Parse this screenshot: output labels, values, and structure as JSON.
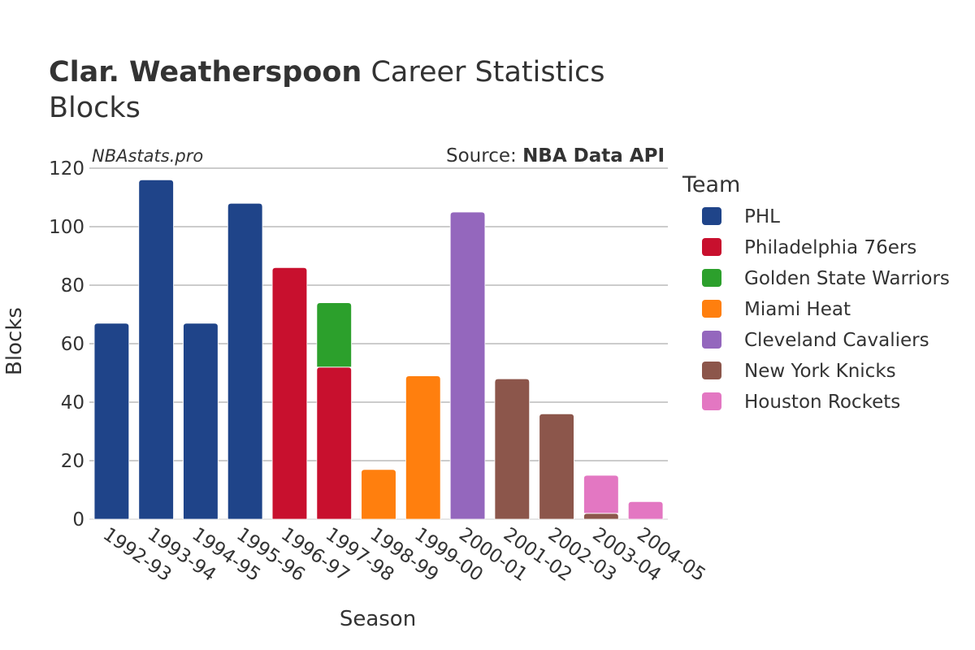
{
  "title": {
    "bold": "Clar. Weatherspoon",
    "rest": " Career Statistics",
    "line2": "Blocks"
  },
  "watermark": "NBAstats.pro",
  "source": {
    "prefix": "Source: ",
    "name": "NBA Data API"
  },
  "colors": {
    "PHL": "#1f4489",
    "Philadelphia 76ers": "#c8102e",
    "Golden State Warriors": "#2ca02c",
    "Miami Heat": "#ff7f0e",
    "Cleveland Cavaliers": "#9467bd",
    "New York Knicks": "#8c564b",
    "Houston Rockets": "#e377c2",
    "grid": "#999999"
  },
  "chart_data": {
    "type": "bar",
    "stacked": true,
    "xlabel": "Season",
    "ylabel": "Blocks",
    "ylim": [
      0,
      120
    ],
    "yticks": [
      0,
      20,
      40,
      60,
      80,
      100,
      120
    ],
    "grid": true,
    "legend_title": "Team",
    "legend_position": "right",
    "categories": [
      "1992-93",
      "1993-94",
      "1994-95",
      "1995-96",
      "1996-97",
      "1997-98",
      "1998-99",
      "1999-00",
      "2000-01",
      "2001-02",
      "2002-03",
      "2003-04",
      "2004-05"
    ],
    "series": [
      {
        "name": "PHL",
        "values": [
          67,
          116,
          67,
          108,
          0,
          0,
          0,
          0,
          0,
          0,
          0,
          0,
          0
        ]
      },
      {
        "name": "Philadelphia 76ers",
        "values": [
          0,
          0,
          0,
          0,
          86,
          52,
          0,
          0,
          0,
          0,
          0,
          0,
          0
        ]
      },
      {
        "name": "Golden State Warriors",
        "values": [
          0,
          0,
          0,
          0,
          0,
          22,
          0,
          0,
          0,
          0,
          0,
          0,
          0
        ]
      },
      {
        "name": "Miami Heat",
        "values": [
          0,
          0,
          0,
          0,
          0,
          0,
          17,
          49,
          0,
          0,
          0,
          0,
          0
        ]
      },
      {
        "name": "Cleveland Cavaliers",
        "values": [
          0,
          0,
          0,
          0,
          0,
          0,
          0,
          0,
          105,
          0,
          0,
          0,
          0
        ]
      },
      {
        "name": "New York Knicks",
        "values": [
          0,
          0,
          0,
          0,
          0,
          0,
          0,
          0,
          0,
          48,
          36,
          2,
          0
        ]
      },
      {
        "name": "Houston Rockets",
        "values": [
          0,
          0,
          0,
          0,
          0,
          0,
          0,
          0,
          0,
          0,
          0,
          13,
          6
        ]
      }
    ]
  }
}
